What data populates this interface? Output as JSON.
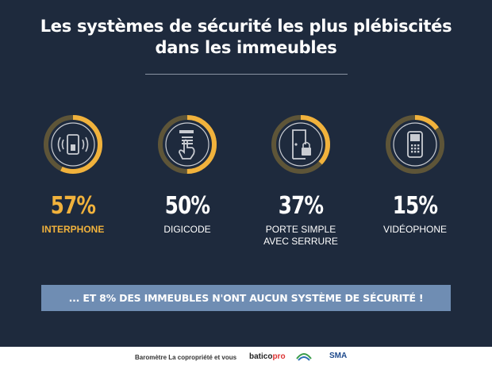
{
  "title_line1": "Les systèmes de sécurité les plus plébiscités",
  "title_line2": "dans les immeubles",
  "chart_data": {
    "type": "pie",
    "title": "Les systèmes de sécurité les plus plébiscités dans les immeubles",
    "categories": [
      "INTERPHONE",
      "DIGICODE",
      "PORTE SIMPLE AVEC SERRURE",
      "VIDÉOPHONE"
    ],
    "values": [
      57,
      50,
      37,
      15
    ],
    "value_labels": [
      "57%",
      "50%",
      "37%",
      "15%"
    ],
    "label_lines": [
      [
        "INTERPHONE"
      ],
      [
        "DIGICODE"
      ],
      [
        "PORTE SIMPLE",
        "AVEC SERRURE"
      ],
      [
        "VIDÉOPHONE"
      ]
    ],
    "icons": [
      "intercom-icon",
      "keypad-icon",
      "door-lock-icon",
      "videophone-icon"
    ],
    "unit": "%",
    "range": [
      0,
      100
    ],
    "highlight_index": 0
  },
  "banner": "... ET 8% DES IMMEUBLES N'ONT AUCUN SYSTÈME DE SÉCURITÉ !",
  "footer": {
    "source": "Baromètre La copropriété et vous",
    "logos": [
      "baticopro",
      "GRDF",
      "SMA"
    ]
  },
  "colors": {
    "background": "#1e2a3d",
    "accent": "#f1b23c",
    "ring_track": "#5e5538",
    "icon_ring": "#c9ccd2",
    "banner": "#6f8db3"
  }
}
